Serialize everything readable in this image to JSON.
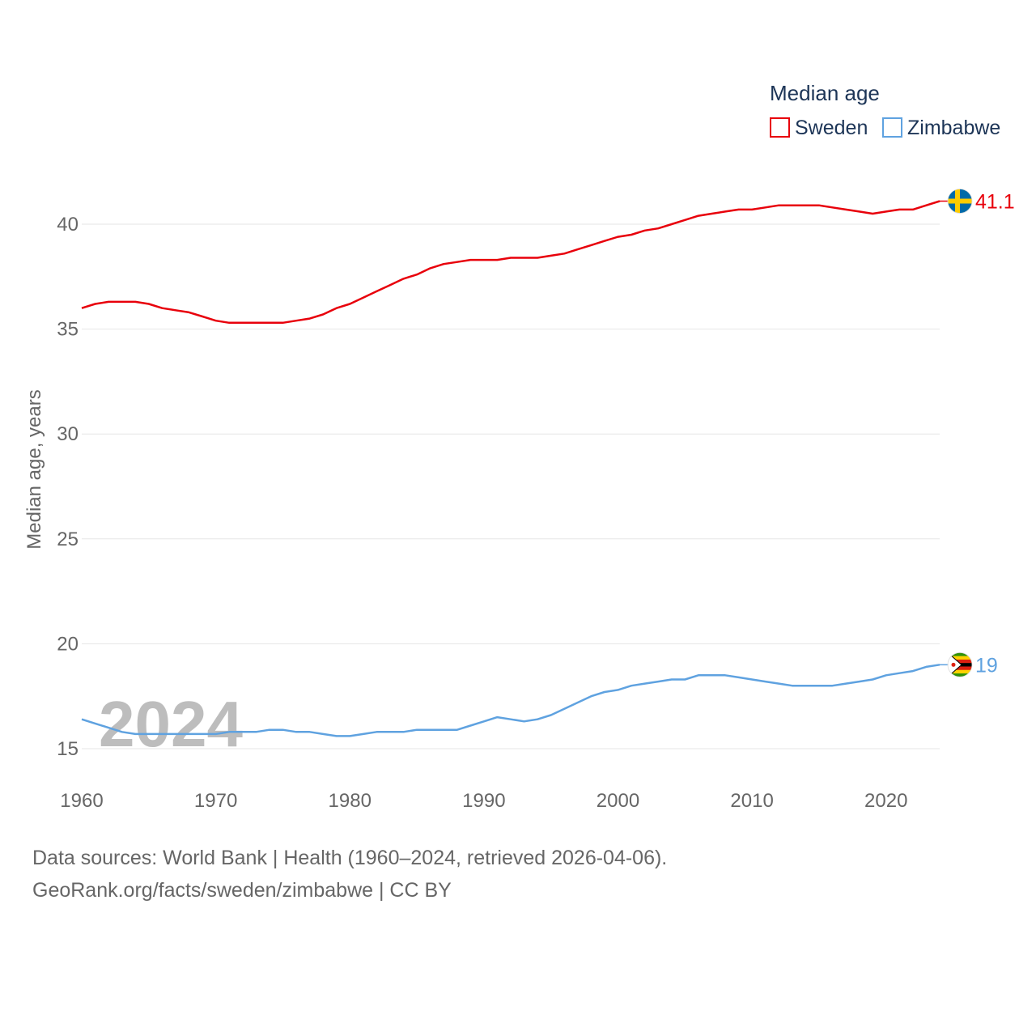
{
  "chart_data": {
    "type": "line",
    "title": "",
    "ylabel": "Median age, years",
    "xlabel": "",
    "xlim": [
      1960,
      2024
    ],
    "ylim": [
      15,
      42
    ],
    "x_ticks": [
      "1960",
      "1970",
      "1980",
      "1990",
      "2000",
      "2010",
      "2020"
    ],
    "y_ticks": [
      "15",
      "20",
      "25",
      "30",
      "35",
      "40"
    ],
    "legend": {
      "title": "Median age",
      "placement": "top-right"
    },
    "highlight_year": "2024",
    "x": [
      1960,
      1961,
      1962,
      1963,
      1964,
      1965,
      1966,
      1967,
      1968,
      1969,
      1970,
      1971,
      1972,
      1973,
      1974,
      1975,
      1976,
      1977,
      1978,
      1979,
      1980,
      1981,
      1982,
      1983,
      1984,
      1985,
      1986,
      1987,
      1988,
      1989,
      1990,
      1991,
      1992,
      1993,
      1994,
      1995,
      1996,
      1997,
      1998,
      1999,
      2000,
      2001,
      2002,
      2003,
      2004,
      2005,
      2006,
      2007,
      2008,
      2009,
      2010,
      2011,
      2012,
      2013,
      2014,
      2015,
      2016,
      2017,
      2018,
      2019,
      2020,
      2021,
      2022,
      2023,
      2024
    ],
    "series": [
      {
        "name": "Sweden",
        "color": "#e8000b",
        "end_label": "41.1",
        "flag": "sweden-flag",
        "values": [
          36.0,
          36.2,
          36.3,
          36.3,
          36.3,
          36.2,
          36.0,
          35.9,
          35.8,
          35.6,
          35.4,
          35.3,
          35.3,
          35.3,
          35.3,
          35.3,
          35.4,
          35.5,
          35.7,
          36.0,
          36.2,
          36.5,
          36.8,
          37.1,
          37.4,
          37.6,
          37.9,
          38.1,
          38.2,
          38.3,
          38.3,
          38.3,
          38.4,
          38.4,
          38.4,
          38.5,
          38.6,
          38.8,
          39.0,
          39.2,
          39.4,
          39.5,
          39.7,
          39.8,
          40.0,
          40.2,
          40.4,
          40.5,
          40.6,
          40.7,
          40.7,
          40.8,
          40.9,
          40.9,
          40.9,
          40.9,
          40.8,
          40.7,
          40.6,
          40.5,
          40.6,
          40.7,
          40.7,
          40.9,
          41.1
        ]
      },
      {
        "name": "Zimbabwe",
        "color": "#5fa2e0",
        "end_label": "19",
        "flag": "zimbabwe-flag",
        "values": [
          16.4,
          16.2,
          16.0,
          15.8,
          15.7,
          15.7,
          15.7,
          15.7,
          15.7,
          15.7,
          15.7,
          15.8,
          15.8,
          15.8,
          15.9,
          15.9,
          15.8,
          15.8,
          15.7,
          15.6,
          15.6,
          15.7,
          15.8,
          15.8,
          15.8,
          15.9,
          15.9,
          15.9,
          15.9,
          16.1,
          16.3,
          16.5,
          16.4,
          16.3,
          16.4,
          16.6,
          16.9,
          17.2,
          17.5,
          17.7,
          17.8,
          18.0,
          18.1,
          18.2,
          18.3,
          18.3,
          18.5,
          18.5,
          18.5,
          18.4,
          18.3,
          18.2,
          18.1,
          18.0,
          18.0,
          18.0,
          18.0,
          18.1,
          18.2,
          18.3,
          18.5,
          18.6,
          18.7,
          18.9,
          19.0
        ]
      }
    ]
  },
  "footer": {
    "line1": "Data sources: World Bank | Health (1960–2024, retrieved 2026-04-06).",
    "line2": "GeoRank.org/facts/sweden/zimbabwe | CC BY"
  }
}
